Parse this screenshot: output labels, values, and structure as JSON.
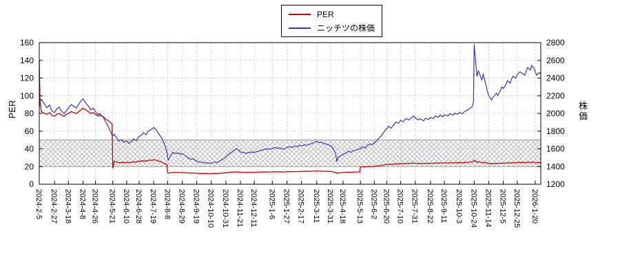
{
  "chart_data": {
    "type": "line",
    "x_type": "date",
    "x_range": [
      "2024-2-5",
      "2026-1-28"
    ],
    "x_ticks": [
      "2024-2-5",
      "2024-2-27",
      "2024-3-18",
      "2024-4-8",
      "2024-4-26",
      "2024-5-21",
      "2024-6-10",
      "2024-6-28",
      "2024-7-19",
      "2024-8-8",
      "2024-8-29",
      "2024-9-19",
      "2024-10-10",
      "2024-10-31",
      "2024-11-21",
      "2024-12-11",
      "2025-1-6",
      "2025-1-27",
      "2025-2-17",
      "2025-3-11",
      "2025-3-31",
      "2025-4-18",
      "2025-5-13",
      "2025-6-2",
      "2025-6-20",
      "2025-7-10",
      "2025-7-31",
      "2025-8-22",
      "2025-9-11",
      "2025-10-3",
      "2025-10-24",
      "2025-11-14",
      "2025-12-5",
      "2025-12-25",
      "2026-1-20"
    ],
    "left_axis": {
      "label": "PER",
      "min": 0,
      "max": 160,
      "ticks": [
        0,
        20,
        40,
        60,
        80,
        100,
        120,
        140,
        160
      ]
    },
    "right_axis": {
      "label": "株価",
      "min": 1200,
      "max": 2800,
      "ticks": [
        1200,
        1400,
        1600,
        1800,
        2000,
        2200,
        2400,
        2600,
        2800
      ]
    },
    "band": {
      "axis": "left",
      "from": 20,
      "to": 50,
      "style": "crosshatch"
    },
    "grid": {
      "shown": true,
      "style": "dashed"
    },
    "legend_position": "top-center",
    "series": [
      {
        "name": "PER",
        "axis": "left",
        "color": "#cc0000"
      },
      {
        "name": "ニッチツの株価",
        "axis": "right",
        "color": "#3333bb"
      }
    ],
    "columns": [
      "date",
      "PER",
      "price"
    ],
    "points": [
      [
        "2024-2-5",
        140,
        2070
      ],
      [
        "2024-2-6",
        96,
        2130
      ],
      [
        "2024-2-8",
        82,
        2160
      ],
      [
        "2024-2-13",
        80,
        2100
      ],
      [
        "2024-2-16",
        79,
        2065
      ],
      [
        "2024-2-20",
        81,
        2095
      ],
      [
        "2024-2-23",
        78,
        2030
      ],
      [
        "2024-2-27",
        77,
        2010
      ],
      [
        "2024-3-1",
        79,
        2050
      ],
      [
        "2024-3-5",
        80,
        2070
      ],
      [
        "2024-3-8",
        78,
        2025
      ],
      [
        "2024-3-12",
        77,
        1995
      ],
      [
        "2024-3-15",
        79,
        2030
      ],
      [
        "2024-3-18",
        80,
        2060
      ],
      [
        "2024-3-22",
        82,
        2100
      ],
      [
        "2024-3-26",
        81,
        2080
      ],
      [
        "2024-3-29",
        80,
        2060
      ],
      [
        "2024-4-2",
        82,
        2105
      ],
      [
        "2024-4-5",
        84,
        2140
      ],
      [
        "2024-4-8",
        86,
        2165
      ],
      [
        "2024-4-12",
        84,
        2120
      ],
      [
        "2024-4-16",
        82,
        2080
      ],
      [
        "2024-4-19",
        80,
        2040
      ],
      [
        "2024-4-23",
        81,
        2060
      ],
      [
        "2024-4-26",
        79,
        2020
      ],
      [
        "2024-4-30",
        77,
        1985
      ],
      [
        "2024-5-2",
        78,
        2000
      ],
      [
        "2024-5-8",
        76,
        1950
      ],
      [
        "2024-5-10",
        74,
        1910
      ],
      [
        "2024-5-14",
        72,
        1860
      ],
      [
        "2024-5-17",
        70,
        1805
      ],
      [
        "2024-5-20",
        68,
        1760
      ],
      [
        "2024-5-21",
        18,
        1745
      ],
      [
        "2024-5-23",
        26,
        1765
      ],
      [
        "2024-5-27",
        25,
        1720
      ],
      [
        "2024-5-30",
        24,
        1690
      ],
      [
        "2024-6-3",
        25,
        1705
      ],
      [
        "2024-6-6",
        24.2,
        1672
      ],
      [
        "2024-6-10",
        25,
        1690
      ],
      [
        "2024-6-13",
        24.4,
        1662
      ],
      [
        "2024-6-17",
        25,
        1685
      ],
      [
        "2024-6-20",
        25.4,
        1712
      ],
      [
        "2024-6-24",
        25,
        1692
      ],
      [
        "2024-6-27",
        26,
        1735
      ],
      [
        "2024-7-1",
        26.2,
        1752
      ],
      [
        "2024-7-4",
        26.6,
        1782
      ],
      [
        "2024-7-8",
        26.2,
        1760
      ],
      [
        "2024-7-11",
        27,
        1800
      ],
      [
        "2024-7-16",
        27.2,
        1822
      ],
      [
        "2024-7-19",
        27.6,
        1842
      ],
      [
        "2024-7-23",
        27.1,
        1812
      ],
      [
        "2024-7-26",
        26.3,
        1772
      ],
      [
        "2024-7-30",
        25.2,
        1730
      ],
      [
        "2024-8-2",
        24,
        1682
      ],
      [
        "2024-8-5",
        23,
        1622
      ],
      [
        "2024-8-7",
        22,
        1562
      ],
      [
        "2024-8-8",
        13,
        1502
      ],
      [
        "2024-8-9",
        12.6,
        1472
      ],
      [
        "2024-8-13",
        13,
        1532
      ],
      [
        "2024-8-16",
        13.5,
        1562
      ],
      [
        "2024-8-20",
        13.2,
        1545
      ],
      [
        "2024-8-23",
        13.4,
        1555
      ],
      [
        "2024-8-27",
        13.1,
        1538
      ],
      [
        "2024-8-29",
        13.3,
        1548
      ],
      [
        "2024-9-3",
        13,
        1520
      ],
      [
        "2024-9-6",
        12.8,
        1502
      ],
      [
        "2024-9-10",
        12.6,
        1482
      ],
      [
        "2024-9-13",
        12.7,
        1490
      ],
      [
        "2024-9-17",
        12.5,
        1472
      ],
      [
        "2024-9-19",
        12.4,
        1462
      ],
      [
        "2024-9-24",
        12.2,
        1446
      ],
      [
        "2024-9-27",
        12.3,
        1452
      ],
      [
        "2024-10-1",
        12.1,
        1438
      ],
      [
        "2024-10-4",
        12.2,
        1444
      ],
      [
        "2024-10-8",
        12,
        1434
      ],
      [
        "2024-10-10",
        12.1,
        1440
      ],
      [
        "2024-10-15",
        12.3,
        1450
      ],
      [
        "2024-10-18",
        12.2,
        1446
      ],
      [
        "2024-10-22",
        12.4,
        1460
      ],
      [
        "2024-10-25",
        12.6,
        1476
      ],
      [
        "2024-10-29",
        12.8,
        1492
      ],
      [
        "2024-10-31",
        13,
        1512
      ],
      [
        "2024-11-5",
        13.4,
        1542
      ],
      [
        "2024-11-8",
        13.6,
        1562
      ],
      [
        "2024-11-12",
        13.8,
        1582
      ],
      [
        "2024-11-15",
        14,
        1602
      ],
      [
        "2024-11-19",
        13.8,
        1582
      ],
      [
        "2024-11-21",
        13.6,
        1566
      ],
      [
        "2024-11-26",
        13.5,
        1556
      ],
      [
        "2024-11-29",
        13.4,
        1550
      ],
      [
        "2024-12-3",
        13.5,
        1556
      ],
      [
        "2024-12-6",
        13.6,
        1565
      ],
      [
        "2024-12-10",
        13.5,
        1560
      ],
      [
        "2024-12-13",
        13.6,
        1566
      ],
      [
        "2024-12-17",
        13.7,
        1572
      ],
      [
        "2024-12-20",
        13.8,
        1580
      ],
      [
        "2024-12-24",
        13.9,
        1590
      ],
      [
        "2024-12-27",
        14,
        1600
      ],
      [
        "2024-12-30",
        13.9,
        1596
      ],
      [
        "2025-1-6",
        14,
        1602
      ],
      [
        "2025-1-9",
        14.2,
        1616
      ],
      [
        "2025-1-14",
        14,
        1606
      ],
      [
        "2025-1-17",
        14.1,
        1612
      ],
      [
        "2025-1-21",
        13.9,
        1596
      ],
      [
        "2025-1-24",
        14,
        1602
      ],
      [
        "2025-1-27",
        14.2,
        1616
      ],
      [
        "2025-1-31",
        14.3,
        1626
      ],
      [
        "2025-2-4",
        14.2,
        1616
      ],
      [
        "2025-2-7",
        14.4,
        1632
      ],
      [
        "2025-2-12",
        14.3,
        1626
      ],
      [
        "2025-2-14",
        14.5,
        1640
      ],
      [
        "2025-2-18",
        14.4,
        1632
      ],
      [
        "2025-2-21",
        14.6,
        1646
      ],
      [
        "2025-2-25",
        14.5,
        1640
      ],
      [
        "2025-2-28",
        14.6,
        1650
      ],
      [
        "2025-3-4",
        14.7,
        1660
      ],
      [
        "2025-3-7",
        14.8,
        1670
      ],
      [
        "2025-3-11",
        15,
        1686
      ],
      [
        "2025-3-14",
        14.8,
        1670
      ],
      [
        "2025-3-18",
        14.9,
        1676
      ],
      [
        "2025-3-21",
        14.7,
        1662
      ],
      [
        "2025-3-25",
        14.6,
        1652
      ],
      [
        "2025-3-28",
        14.5,
        1645
      ],
      [
        "2025-3-31",
        14.4,
        1636
      ],
      [
        "2025-4-3",
        14.1,
        1612
      ],
      [
        "2025-4-7",
        13.4,
        1552
      ],
      [
        "2025-4-9",
        12.3,
        1456
      ],
      [
        "2025-4-11",
        12.9,
        1506
      ],
      [
        "2025-4-15",
        13.1,
        1522
      ],
      [
        "2025-4-18",
        13.3,
        1536
      ],
      [
        "2025-4-22",
        13.5,
        1552
      ],
      [
        "2025-4-25",
        13.7,
        1572
      ],
      [
        "2025-4-30",
        13.6,
        1562
      ],
      [
        "2025-5-2",
        13.7,
        1576
      ],
      [
        "2025-5-8",
        13.9,
        1590
      ],
      [
        "2025-5-12",
        14,
        1600
      ],
      [
        "2025-5-13",
        19.5,
        1606
      ],
      [
        "2025-5-16",
        19.8,
        1622
      ],
      [
        "2025-5-20",
        19.6,
        1612
      ],
      [
        "2025-5-23",
        20,
        1640
      ],
      [
        "2025-5-27",
        20.2,
        1656
      ],
      [
        "2025-5-30",
        20,
        1646
      ],
      [
        "2025-6-2",
        20.3,
        1666
      ],
      [
        "2025-6-5",
        20.6,
        1690
      ],
      [
        "2025-6-9",
        21,
        1722
      ],
      [
        "2025-6-12",
        21.3,
        1746
      ],
      [
        "2025-6-16",
        21.8,
        1790
      ],
      [
        "2025-6-19",
        22.2,
        1822
      ],
      [
        "2025-6-23",
        22.6,
        1856
      ],
      [
        "2025-6-26",
        22.3,
        1832
      ],
      [
        "2025-6-30",
        22.8,
        1870
      ],
      [
        "2025-7-3",
        23.2,
        1902
      ],
      [
        "2025-7-7",
        23,
        1890
      ],
      [
        "2025-7-10",
        23.4,
        1922
      ],
      [
        "2025-7-14",
        23.2,
        1906
      ],
      [
        "2025-7-17",
        23.6,
        1940
      ],
      [
        "2025-7-22",
        23.4,
        1926
      ],
      [
        "2025-7-25",
        23.8,
        1952
      ],
      [
        "2025-7-29",
        24,
        1972
      ],
      [
        "2025-7-31",
        23.7,
        1950
      ],
      [
        "2025-8-4",
        23.4,
        1926
      ],
      [
        "2025-8-7",
        23.6,
        1942
      ],
      [
        "2025-8-12",
        23.3,
        1916
      ],
      [
        "2025-8-15",
        23.7,
        1946
      ],
      [
        "2025-8-19",
        23.5,
        1932
      ],
      [
        "2025-8-22",
        23.8,
        1956
      ],
      [
        "2025-8-26",
        23.6,
        1942
      ],
      [
        "2025-8-29",
        24,
        1972
      ],
      [
        "2025-9-2",
        23.8,
        1956
      ],
      [
        "2025-9-5",
        24.1,
        1982
      ],
      [
        "2025-9-9",
        23.9,
        1962
      ],
      [
        "2025-9-11",
        24.2,
        1986
      ],
      [
        "2025-9-16",
        24,
        1972
      ],
      [
        "2025-9-19",
        24.3,
        1996
      ],
      [
        "2025-9-24",
        24.1,
        1982
      ],
      [
        "2025-9-26",
        24.4,
        2002
      ],
      [
        "2025-9-30",
        24.2,
        1992
      ],
      [
        "2025-10-3",
        24.5,
        2012
      ],
      [
        "2025-10-7",
        24.3,
        1996
      ],
      [
        "2025-10-10",
        24.6,
        2022
      ],
      [
        "2025-10-14",
        24.8,
        2036
      ],
      [
        "2025-10-17",
        25,
        2052
      ],
      [
        "2025-10-21",
        25.3,
        2076
      ],
      [
        "2025-10-23",
        26,
        2130
      ],
      [
        "2025-10-24",
        27.3,
        2780
      ],
      [
        "2025-10-27",
        25.5,
        2500
      ],
      [
        "2025-10-28",
        25,
        2420
      ],
      [
        "2025-10-30",
        25.3,
        2480
      ],
      [
        "2025-11-4",
        24.5,
        2380
      ],
      [
        "2025-11-6",
        24.8,
        2440
      ],
      [
        "2025-11-10",
        24.2,
        2320
      ],
      [
        "2025-11-12",
        23.8,
        2252
      ],
      [
        "2025-11-14",
        23.5,
        2200
      ],
      [
        "2025-11-18",
        23.2,
        2152
      ],
      [
        "2025-11-20",
        23.4,
        2180
      ],
      [
        "2025-11-25",
        23.6,
        2230
      ],
      [
        "2025-11-27",
        23.4,
        2202
      ],
      [
        "2025-12-1",
        23.7,
        2262
      ],
      [
        "2025-12-3",
        23.9,
        2300
      ],
      [
        "2025-12-5",
        23.8,
        2280
      ],
      [
        "2025-12-9",
        24,
        2330
      ],
      [
        "2025-12-11",
        24.2,
        2370
      ],
      [
        "2025-12-15",
        24,
        2342
      ],
      [
        "2025-12-17",
        24.3,
        2392
      ],
      [
        "2025-12-19",
        24.5,
        2420
      ],
      [
        "2025-12-23",
        24.4,
        2400
      ],
      [
        "2025-12-25",
        24.6,
        2440
      ],
      [
        "2025-12-29",
        24.8,
        2470
      ],
      [
        "2026-1-5",
        24.5,
        2432
      ],
      [
        "2026-1-7",
        24.7,
        2480
      ],
      [
        "2026-1-9",
        24.9,
        2520
      ],
      [
        "2026-1-13",
        24.7,
        2492
      ],
      [
        "2026-1-15",
        25,
        2542
      ],
      [
        "2026-1-19",
        24.8,
        2502
      ],
      [
        "2026-1-20",
        24.6,
        2472
      ],
      [
        "2026-1-22",
        24.4,
        2432
      ],
      [
        "2026-1-26",
        24.6,
        2462
      ],
      [
        "2026-1-28",
        24.5,
        2445
      ]
    ]
  }
}
